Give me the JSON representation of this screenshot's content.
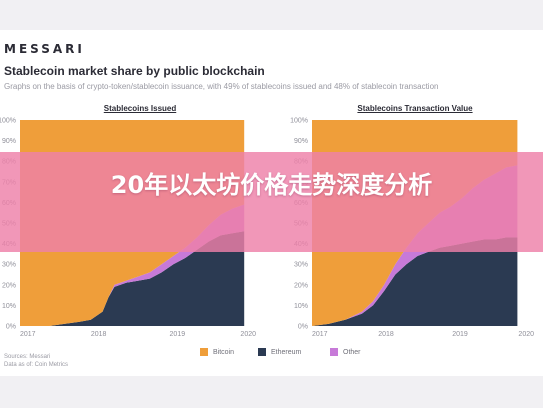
{
  "header": {
    "logo": "MESSARI",
    "headline": "Stablecoin market share by public blockchain",
    "subline": "Graphs on the basis of crypto-token/stablecoin issuance, with 49% of stablecoins issued and 48% of stablecoin transaction"
  },
  "overlay": {
    "title": "20年以太坊价格走势深度分析"
  },
  "colors": {
    "bitcoin": "#ef9e3a",
    "ethereum": "#2b3a52",
    "other": "#c77ad8",
    "background": "#ffffff",
    "overlay": "#ee80a8"
  },
  "footer": {
    "source_line1": "Sources: Messari",
    "source_line2": "Data as of: Coin Metrics"
  },
  "chart_data": [
    {
      "type": "area",
      "title": "Stablecoins Issued",
      "stacking": "percent",
      "x_ticks": [
        "2017",
        "2018",
        "2019",
        "2020"
      ],
      "y_ticks": [
        "0%",
        "10%",
        "20%",
        "30%",
        "40%",
        "50%",
        "60%",
        "70%",
        "80%",
        "90%",
        "100%"
      ],
      "ylim": [
        0,
        100
      ],
      "x": [
        2017.0,
        2017.25,
        2017.5,
        2017.75,
        2018.0,
        2018.2,
        2018.4,
        2018.5,
        2018.6,
        2018.8,
        2019.0,
        2019.2,
        2019.4,
        2019.6,
        2019.8,
        2020.0,
        2020.2,
        2020.4,
        2020.6,
        2020.8
      ],
      "series": [
        {
          "name": "Bitcoin",
          "values": [
            100,
            100,
            100,
            99,
            98,
            97,
            93,
            86,
            80,
            78,
            76,
            74,
            70,
            66,
            62,
            57,
            51,
            46,
            43,
            41
          ]
        },
        {
          "name": "Ethereum",
          "values": [
            0,
            0,
            0,
            1,
            2,
            3,
            7,
            14,
            19,
            21,
            22,
            23,
            26,
            30,
            33,
            37,
            41,
            44,
            45,
            46
          ]
        },
        {
          "name": "Other",
          "values": [
            0,
            0,
            0,
            0,
            0,
            0,
            0,
            0,
            1,
            1,
            2,
            3,
            4,
            4,
            5,
            6,
            8,
            10,
            12,
            13
          ]
        }
      ],
      "legend": "bottom"
    },
    {
      "type": "area",
      "title": "Stablecoins Transaction Value",
      "stacking": "percent",
      "x_ticks": [
        "2017",
        "2018",
        "2019",
        "2020"
      ],
      "y_ticks": [
        "0%",
        "10%",
        "20%",
        "30%",
        "40%",
        "50%",
        "60%",
        "70%",
        "80%",
        "90%",
        "100%"
      ],
      "ylim": [
        0,
        100
      ],
      "x": [
        2017.0,
        2017.3,
        2017.6,
        2017.9,
        2018.1,
        2018.3,
        2018.5,
        2018.7,
        2018.9,
        2019.1,
        2019.3,
        2019.5,
        2019.7,
        2019.9,
        2020.1,
        2020.3,
        2020.5,
        2020.7
      ],
      "series": [
        {
          "name": "Bitcoin",
          "values": [
            100,
            99,
            97,
            93,
            88,
            80,
            70,
            62,
            55,
            50,
            45,
            42,
            38,
            33,
            29,
            26,
            23,
            22
          ]
        },
        {
          "name": "Ethereum",
          "values": [
            0,
            1,
            3,
            6,
            10,
            17,
            25,
            30,
            34,
            36,
            38,
            39,
            40,
            41,
            42,
            42,
            43,
            43
          ]
        },
        {
          "name": "Other",
          "values": [
            0,
            0,
            0,
            1,
            2,
            3,
            5,
            8,
            11,
            14,
            17,
            19,
            22,
            26,
            29,
            32,
            34,
            35
          ]
        }
      ],
      "legend": "bottom"
    }
  ]
}
